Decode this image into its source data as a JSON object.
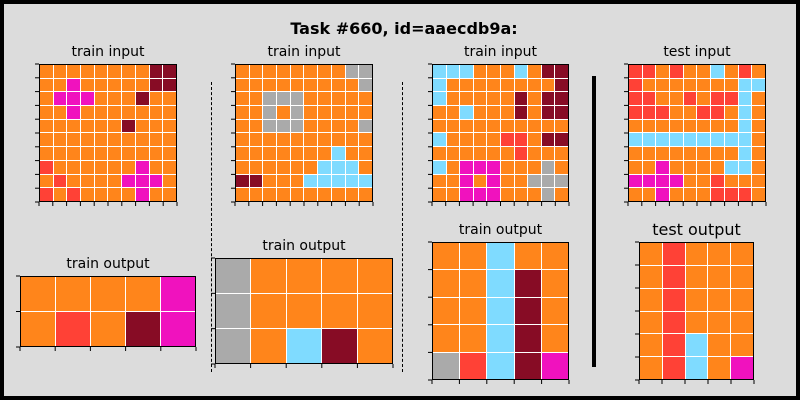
{
  "title": "Task #660, id=aaecdb9a:",
  "palette": {
    "0": "#000000",
    "1": "#0074D9",
    "2": "#FF4136",
    "3": "#2ECC40",
    "4": "#FFDC00",
    "5": "#AAAAAA",
    "6": "#F012BE",
    "7": "#FF851B",
    "8": "#7FDBFF",
    "9": "#870C25"
  },
  "panels": [
    {
      "title": "train input",
      "grid": [
        [
          7,
          7,
          7,
          7,
          7,
          7,
          7,
          7,
          9,
          9
        ],
        [
          7,
          7,
          6,
          7,
          7,
          7,
          7,
          7,
          9,
          9
        ],
        [
          7,
          6,
          6,
          6,
          7,
          7,
          7,
          9,
          7,
          7
        ],
        [
          7,
          7,
          6,
          7,
          7,
          7,
          7,
          7,
          7,
          7
        ],
        [
          7,
          7,
          7,
          7,
          7,
          7,
          9,
          7,
          7,
          7
        ],
        [
          7,
          7,
          7,
          7,
          7,
          7,
          7,
          7,
          7,
          7
        ],
        [
          7,
          7,
          7,
          7,
          7,
          7,
          7,
          7,
          7,
          7
        ],
        [
          2,
          7,
          7,
          7,
          7,
          7,
          7,
          6,
          7,
          7
        ],
        [
          7,
          2,
          7,
          7,
          7,
          7,
          6,
          6,
          6,
          7
        ],
        [
          2,
          7,
          2,
          7,
          7,
          7,
          7,
          6,
          7,
          7
        ]
      ]
    },
    {
      "title": "train output",
      "grid": [
        [
          7,
          7,
          7,
          7,
          6
        ],
        [
          7,
          2,
          7,
          9,
          6
        ]
      ]
    },
    {
      "title": "train input",
      "grid": [
        [
          7,
          7,
          7,
          7,
          7,
          7,
          7,
          7,
          5,
          5
        ],
        [
          7,
          7,
          7,
          7,
          7,
          7,
          7,
          7,
          7,
          5
        ],
        [
          7,
          7,
          5,
          5,
          5,
          7,
          7,
          7,
          7,
          7
        ],
        [
          7,
          7,
          5,
          7,
          5,
          7,
          7,
          7,
          7,
          7
        ],
        [
          7,
          7,
          5,
          5,
          5,
          7,
          7,
          7,
          7,
          5
        ],
        [
          7,
          7,
          7,
          7,
          7,
          7,
          7,
          7,
          7,
          7
        ],
        [
          7,
          7,
          7,
          7,
          7,
          7,
          7,
          8,
          7,
          7
        ],
        [
          7,
          7,
          7,
          7,
          7,
          7,
          8,
          8,
          8,
          7
        ],
        [
          9,
          9,
          7,
          7,
          7,
          8,
          8,
          8,
          8,
          8
        ],
        [
          7,
          7,
          7,
          7,
          7,
          7,
          7,
          7,
          7,
          7
        ]
      ]
    },
    {
      "title": "train output",
      "grid": [
        [
          5,
          7,
          7,
          7,
          7
        ],
        [
          5,
          7,
          7,
          7,
          7
        ],
        [
          5,
          7,
          8,
          9,
          7
        ]
      ]
    },
    {
      "title": "train input",
      "grid": [
        [
          8,
          8,
          8,
          7,
          7,
          7,
          8,
          7,
          9,
          9
        ],
        [
          8,
          7,
          7,
          7,
          7,
          7,
          7,
          7,
          7,
          9
        ],
        [
          8,
          7,
          7,
          7,
          7,
          7,
          9,
          7,
          9,
          9
        ],
        [
          7,
          7,
          8,
          7,
          7,
          7,
          9,
          7,
          9,
          9
        ],
        [
          7,
          7,
          7,
          7,
          7,
          7,
          7,
          7,
          7,
          7
        ],
        [
          8,
          7,
          7,
          7,
          7,
          2,
          2,
          7,
          9,
          9
        ],
        [
          7,
          7,
          7,
          7,
          7,
          7,
          2,
          7,
          7,
          7
        ],
        [
          8,
          7,
          6,
          6,
          6,
          7,
          7,
          7,
          5,
          7
        ],
        [
          7,
          7,
          6,
          7,
          6,
          7,
          7,
          5,
          5,
          5
        ],
        [
          7,
          7,
          6,
          6,
          6,
          7,
          7,
          7,
          5,
          7
        ]
      ]
    },
    {
      "title": "train output",
      "grid": [
        [
          7,
          7,
          8,
          7,
          7
        ],
        [
          7,
          7,
          8,
          9,
          7
        ],
        [
          7,
          7,
          8,
          9,
          7
        ],
        [
          7,
          7,
          8,
          9,
          7
        ],
        [
          5,
          2,
          8,
          9,
          6
        ]
      ]
    },
    {
      "title": "test input",
      "grid": [
        [
          2,
          2,
          7,
          2,
          7,
          7,
          8,
          7,
          2,
          7
        ],
        [
          2,
          7,
          7,
          7,
          7,
          7,
          7,
          7,
          8,
          8
        ],
        [
          2,
          2,
          7,
          7,
          2,
          7,
          2,
          2,
          8,
          7
        ],
        [
          2,
          2,
          2,
          7,
          7,
          2,
          2,
          7,
          8,
          7
        ],
        [
          7,
          7,
          7,
          7,
          7,
          7,
          7,
          7,
          8,
          7
        ],
        [
          8,
          8,
          8,
          8,
          8,
          8,
          8,
          8,
          8,
          7
        ],
        [
          7,
          7,
          7,
          7,
          7,
          7,
          7,
          7,
          8,
          7
        ],
        [
          7,
          7,
          6,
          7,
          7,
          7,
          7,
          8,
          8,
          7
        ],
        [
          6,
          6,
          6,
          6,
          7,
          7,
          2,
          7,
          7,
          7
        ],
        [
          7,
          7,
          6,
          7,
          7,
          7,
          2,
          2,
          2,
          7
        ]
      ]
    },
    {
      "title": "test output",
      "grid": [
        [
          7,
          2,
          7,
          7,
          7
        ],
        [
          7,
          2,
          7,
          7,
          7
        ],
        [
          7,
          2,
          7,
          7,
          7
        ],
        [
          7,
          2,
          7,
          7,
          7
        ],
        [
          7,
          2,
          8,
          7,
          7
        ],
        [
          7,
          2,
          8,
          7,
          6
        ]
      ]
    }
  ]
}
